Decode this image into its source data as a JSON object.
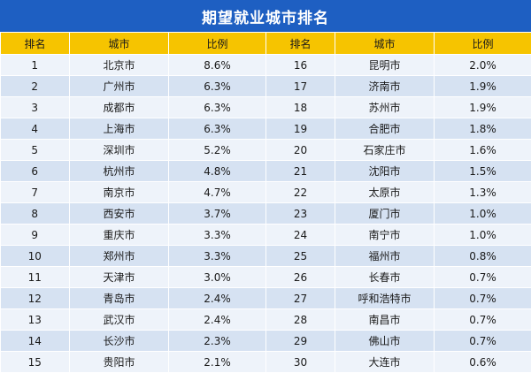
{
  "title": "期望就业城市排名",
  "headers": [
    "排名",
    "城市",
    "比例",
    "排名",
    "城市",
    "比例"
  ],
  "rows": [
    {
      "rank_left": "1",
      "city_left": "北京市",
      "ratio_left": "8.6%",
      "rank_right": "16",
      "city_right": "昆明市",
      "ratio_right": "2.0%"
    },
    {
      "rank_left": "2",
      "city_left": "广州市",
      "ratio_left": "6.3%",
      "rank_right": "17",
      "city_right": "济南市",
      "ratio_right": "1.9%"
    },
    {
      "rank_left": "3",
      "city_left": "成都市",
      "ratio_left": "6.3%",
      "rank_right": "18",
      "city_right": "苏州市",
      "ratio_right": "1.9%"
    },
    {
      "rank_left": "4",
      "city_left": "上海市",
      "ratio_left": "6.3%",
      "rank_right": "19",
      "city_right": "合肥市",
      "ratio_right": "1.8%"
    },
    {
      "rank_left": "5",
      "city_left": "深圳市",
      "ratio_left": "5.2%",
      "rank_right": "20",
      "city_right": "石家庄市",
      "ratio_right": "1.6%"
    },
    {
      "rank_left": "6",
      "city_left": "杭州市",
      "ratio_left": "4.8%",
      "rank_right": "21",
      "city_right": "沈阳市",
      "ratio_right": "1.5%"
    },
    {
      "rank_left": "7",
      "city_left": "南京市",
      "ratio_left": "4.7%",
      "rank_right": "22",
      "city_right": "太原市",
      "ratio_right": "1.3%"
    },
    {
      "rank_left": "8",
      "city_left": "西安市",
      "ratio_left": "3.7%",
      "rank_right": "23",
      "city_right": "厦门市",
      "ratio_right": "1.0%"
    },
    {
      "rank_left": "9",
      "city_left": "重庆市",
      "ratio_left": "3.3%",
      "rank_right": "24",
      "city_right": "南宁市",
      "ratio_right": "1.0%"
    },
    {
      "rank_left": "10",
      "city_left": "郑州市",
      "ratio_left": "3.3%",
      "rank_right": "25",
      "city_right": "福州市",
      "ratio_right": "0.8%"
    },
    {
      "rank_left": "11",
      "city_left": "天津市",
      "ratio_left": "3.0%",
      "rank_right": "26",
      "city_right": "长春市",
      "ratio_right": "0.7%"
    },
    {
      "rank_left": "12",
      "city_left": "青岛市",
      "ratio_left": "2.4%",
      "rank_right": "27",
      "city_right": "呼和浩特市",
      "ratio_right": "0.7%"
    },
    {
      "rank_left": "13",
      "city_left": "武汉市",
      "ratio_left": "2.4%",
      "rank_right": "28",
      "city_right": "南昌市",
      "ratio_right": "0.7%"
    },
    {
      "rank_left": "14",
      "city_left": "长沙市",
      "ratio_left": "2.3%",
      "rank_right": "29",
      "city_right": "佛山市",
      "ratio_right": "0.7%"
    },
    {
      "rank_left": "15",
      "city_left": "贵阳市",
      "ratio_left": "2.1%",
      "rank_right": "30",
      "city_right": "大连市",
      "ratio_right": "0.6%"
    }
  ],
  "colors": {
    "title_bg": "#1e5fc2",
    "header_bg": "#f6c400",
    "row_light": "#eef3fa",
    "row_dark": "#d6e2f2"
  }
}
